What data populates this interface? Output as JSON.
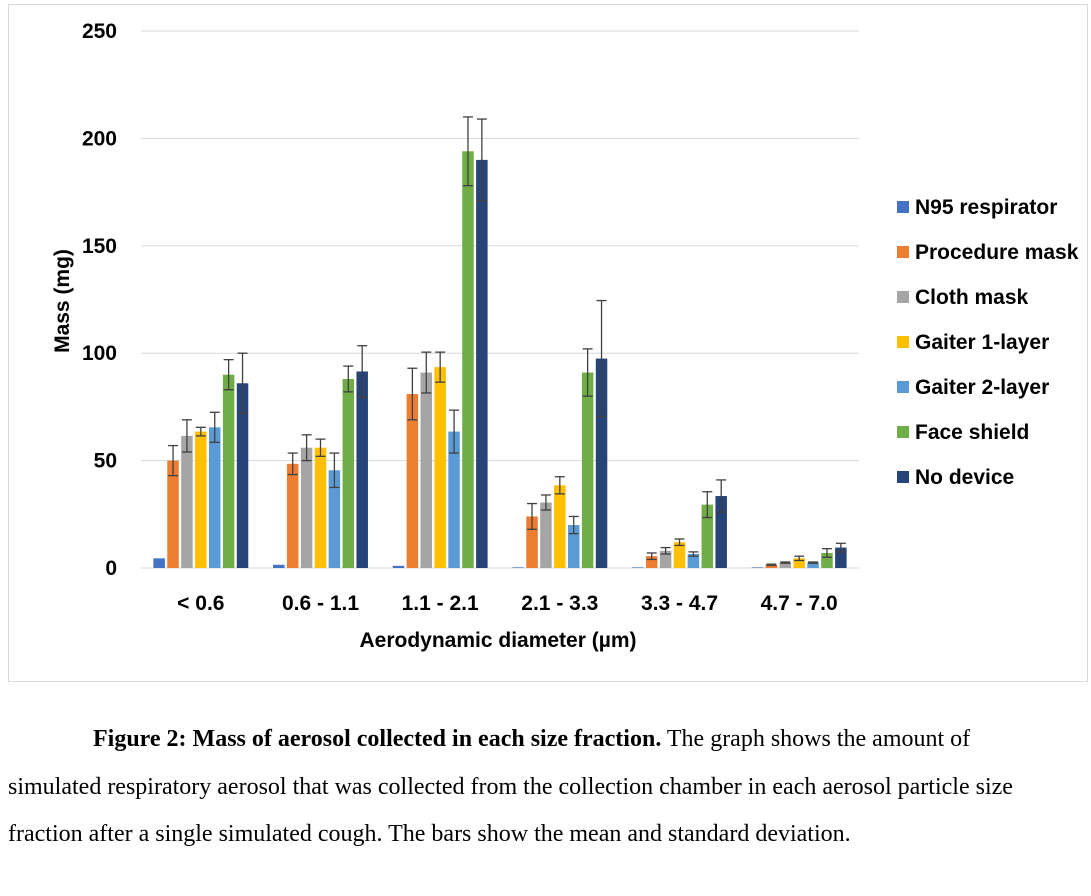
{
  "chart_data": {
    "type": "bar",
    "categories": [
      "< 0.6",
      "0.6 - 1.1",
      "1.1 - 2.1",
      "2.1 - 3.3",
      "3.3 - 4.7",
      "4.7 - 7.0"
    ],
    "series": [
      {
        "name": "N95 respirator",
        "color": "#4472c4",
        "values": [
          4.5,
          1.5,
          1.0,
          0.3,
          0.3,
          0.3
        ],
        "errors": [
          0,
          0,
          0,
          0,
          0,
          0
        ]
      },
      {
        "name": "Procedure mask",
        "color": "#ed7d31",
        "values": [
          50,
          48.5,
          81,
          24,
          5.5,
          1.5
        ],
        "errors": [
          7,
          5,
          12,
          6,
          1.5,
          0.3
        ]
      },
      {
        "name": "Cloth mask",
        "color": "#a5a5a5",
        "values": [
          61.5,
          56,
          91,
          30.5,
          8,
          2.5
        ],
        "errors": [
          7.5,
          6,
          9.5,
          3.5,
          1.5,
          0.3
        ]
      },
      {
        "name": "Gaiter 1-layer",
        "color": "#ffc000",
        "values": [
          63.5,
          56,
          93.5,
          38.5,
          12,
          4.5
        ],
        "errors": [
          2,
          4,
          7,
          4,
          1.5,
          1
        ]
      },
      {
        "name": "Gaiter 2-layer",
        "color": "#5b9bd5",
        "values": [
          65.5,
          45.5,
          63.5,
          20,
          6.5,
          2.5
        ],
        "errors": [
          7,
          8,
          10,
          4,
          1,
          0.3
        ]
      },
      {
        "name": "Face shield",
        "color": "#70ad47",
        "values": [
          90,
          88,
          194,
          91,
          29.5,
          7
        ],
        "errors": [
          7,
          6,
          16,
          11,
          6,
          2
        ]
      },
      {
        "name": "No device",
        "color": "#264478",
        "values": [
          86,
          91.5,
          190,
          97.5,
          33.5,
          9.5
        ],
        "errors": [
          14,
          12,
          19,
          27,
          7.5,
          2
        ]
      }
    ],
    "xlabel": "Aerodynamic diameter (µm)",
    "ylabel": "Mass (mg)",
    "ylim": [
      0,
      250
    ],
    "yticks": [
      0,
      50,
      100,
      150,
      200,
      250
    ],
    "grid": true,
    "legend_position": "right"
  },
  "caption": {
    "bold": "Figure 2: Mass of aerosol collected in each size fraction.",
    "text": " The graph shows the amount of simulated respiratory aerosol that was collected from the collection chamber in each aerosol particle size fraction after a single simulated cough. The bars show the mean and standard deviation."
  }
}
